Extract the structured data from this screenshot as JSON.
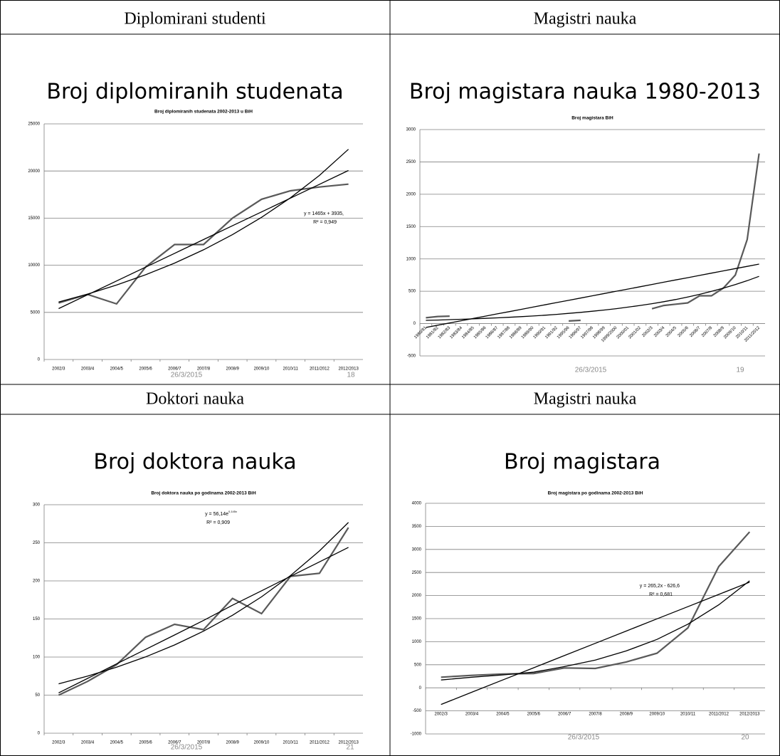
{
  "chart_data": [
    {
      "type": "line",
      "heading": "Diplomirani studenti",
      "slide_title": "Broj diplomiranih studenata",
      "title": "Broj diplomiranih studenata 2002-2013 u BiH",
      "date": "26/3/2015",
      "page": 18,
      "equation": "y = 1465x + 3935,",
      "r_squared": "R² = 0,949",
      "categories": [
        "2002/3",
        "2003/4",
        "2004/5",
        "2005/6",
        "2006/7",
        "2007/8",
        "2008/9",
        "2009/10",
        "2010/11",
        "2011/2012",
        "2012/2013"
      ],
      "series": [
        {
          "color": "#595959",
          "values": [
            6000,
            6900,
            5900,
            9800,
            12200,
            12200,
            15000,
            17000,
            17900,
            18300,
            18600
          ]
        },
        {
          "color": "#000000",
          "values": [
            5400,
            6865,
            8330,
            9795,
            11260,
            12725,
            14190,
            15655,
            17120,
            18585,
            20050
          ]
        },
        {
          "color": "#000000",
          "values": [
            6100,
            6940,
            7900,
            8990,
            10230,
            11640,
            13250,
            15080,
            17160,
            19530,
            22300
          ]
        }
      ],
      "ylim": [
        0,
        25000
      ],
      "yticks": [
        0,
        5000,
        10000,
        15000,
        20000,
        25000
      ],
      "grid": true
    },
    {
      "type": "line",
      "heading": "Magistri nauka",
      "slide_title": "Broj magistara nauka 1980-2013",
      "title": "Broj magistara BiH",
      "date": "26/3/2015",
      "page": 19,
      "categories": [
        "1980/81",
        "1981/82",
        "1982/83",
        "1983/84",
        "1984/85",
        "1985/86",
        "1986/87",
        "1987/88",
        "1988/89",
        "1989/90",
        "1990/91",
        "1991/92",
        "1995/96",
        "1996/97",
        "1997/98",
        "1998/99",
        "1999/2000",
        "2000/01",
        "2001/02",
        "2002/3",
        "2003/4",
        "2004/5",
        "2005/6",
        "2006/7",
        "2007/8",
        "2008/9",
        "2009/10",
        "2010/11",
        "2011/2012"
      ],
      "series": [
        {
          "color": "#595959",
          "values": [
            90,
            110,
            115,
            null,
            null,
            null,
            null,
            null,
            null,
            null,
            null,
            null,
            40,
            50,
            null,
            null,
            null,
            null,
            null,
            230,
            280,
            300,
            320,
            430,
            430,
            550,
            750,
            1300,
            2630
          ]
        },
        {
          "color": "#000000",
          "values": [
            -60,
            -25,
            10,
            45,
            80,
            115,
            150,
            185,
            220,
            255,
            290,
            325,
            360,
            395,
            430,
            465,
            500,
            535,
            570,
            605,
            640,
            675,
            710,
            745,
            780,
            815,
            850,
            885,
            920
          ]
        },
        {
          "color": "#000000",
          "values": [
            50,
            55,
            61,
            67,
            73,
            81,
            89,
            98,
            108,
            118,
            130,
            143,
            158,
            174,
            191,
            210,
            231,
            255,
            280,
            308,
            339,
            373,
            411,
            452,
            498,
            548,
            603,
            663,
            730
          ]
        }
      ],
      "ylim": [
        -500,
        3000
      ],
      "yticks": [
        -500,
        0,
        500,
        1000,
        1500,
        2000,
        2500,
        3000
      ],
      "grid": true
    },
    {
      "type": "line",
      "heading": "Doktori nauka",
      "slide_title": "Broj doktora nauka",
      "title": "Broj doktora nauka po godinama 2002-2013 BiH",
      "date": "26/3/2015",
      "page": 21,
      "equation": "y = 56,14e",
      "equation_exponent": "0,145x",
      "r_squared": "R² = 0,909",
      "categories": [
        "2002/3",
        "2003/4",
        "2004/5",
        "2005/6",
        "2006/7",
        "2007/8",
        "2008/9",
        "2009/10",
        "2010/11",
        "2011/2012",
        "2012/2013"
      ],
      "series": [
        {
          "color": "#595959",
          "values": [
            50,
            68,
            90,
            126,
            143,
            136,
            177,
            157,
            206,
            210,
            270
          ]
        },
        {
          "color": "#000000",
          "values": [
            53,
            72,
            91,
            110,
            129,
            148,
            168,
            187,
            206,
            225,
            244
          ]
        },
        {
          "color": "#000000",
          "values": [
            64.9,
            75,
            86.7,
            100.2,
            115.9,
            134,
            154.9,
            179.1,
            207,
            239.3,
            276.7
          ]
        }
      ],
      "ylim": [
        0,
        300
      ],
      "yticks": [
        0,
        50,
        100,
        150,
        200,
        250,
        300
      ],
      "grid": true
    },
    {
      "type": "line",
      "heading": "Magistri nauka",
      "slide_title": "Broj magistara",
      "title": "Broj magistara po godinama 2002-2013 BiH",
      "date": "26/3/2015",
      "page": 20,
      "equation": "y = 265,2x - 626,6",
      "r_squared": "R² = 0,681",
      "categories": [
        "2002/3",
        "2003/4",
        "2004/5",
        "2005/6",
        "2006/7",
        "2007/8",
        "2008/9",
        "2009/10",
        "2010/11",
        "2011/2012",
        "2012/2013"
      ],
      "series": [
        {
          "color": "#595959",
          "values": [
            230,
            270,
            300,
            310,
            430,
            420,
            560,
            750,
            1300,
            2630,
            3380
          ]
        },
        {
          "color": "#000000",
          "values": [
            -361,
            -96,
            169,
            434,
            699,
            964,
            1230,
            1495,
            1760,
            2025,
            2290
          ]
        },
        {
          "color": "#000000",
          "values": [
            170,
            230,
            280,
            340,
            460,
            600,
            800,
            1050,
            1380,
            1800,
            2320
          ]
        }
      ],
      "ylim": [
        -1000,
        4000
      ],
      "yticks": [
        -1000,
        -500,
        0,
        500,
        1000,
        1500,
        2000,
        2500,
        3000,
        3500,
        4000
      ],
      "grid": true
    }
  ]
}
